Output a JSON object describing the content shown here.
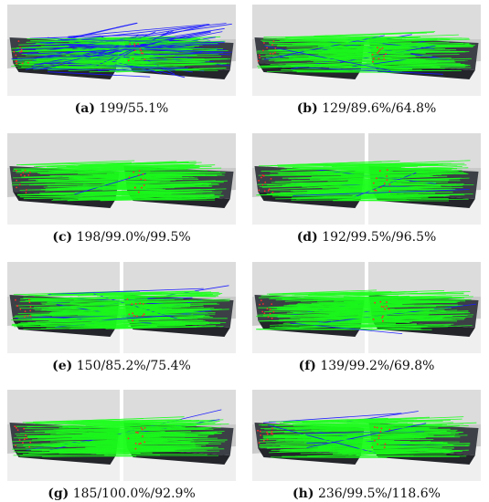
{
  "panels": [
    {
      "id": "a",
      "label": "(a)",
      "value": "199/55.1%",
      "split": false,
      "blue": 0.45
    },
    {
      "id": "b",
      "label": "(b)",
      "value": "129/89.6%/64.8%",
      "split": false,
      "blue": 0.08
    },
    {
      "id": "c",
      "label": "(c)",
      "value": "198/99.0%/99.5%",
      "split": false,
      "blue": 0.02
    },
    {
      "id": "d",
      "label": "(d)",
      "value": "192/99.5%/96.5%",
      "split": true,
      "blue": 0.03
    },
    {
      "id": "e",
      "label": "(e)",
      "value": "150/85.2%/75.4%",
      "split": true,
      "blue": 0.06
    },
    {
      "id": "f",
      "label": "(f)",
      "value": "139/99.2%/69.8%",
      "split": true,
      "blue": 0.03
    },
    {
      "id": "g",
      "label": "(g)",
      "value": "185/100.0%/92.9%",
      "split": true,
      "blue": 0.01
    },
    {
      "id": "h",
      "label": "(h)",
      "value": "236/99.5%/118.6%",
      "split": false,
      "blue": 0.03
    }
  ],
  "colors": {
    "match_line": "#1aff1a",
    "outlier_line": "#1a1aff",
    "keypoint": "#ff2a2a"
  }
}
